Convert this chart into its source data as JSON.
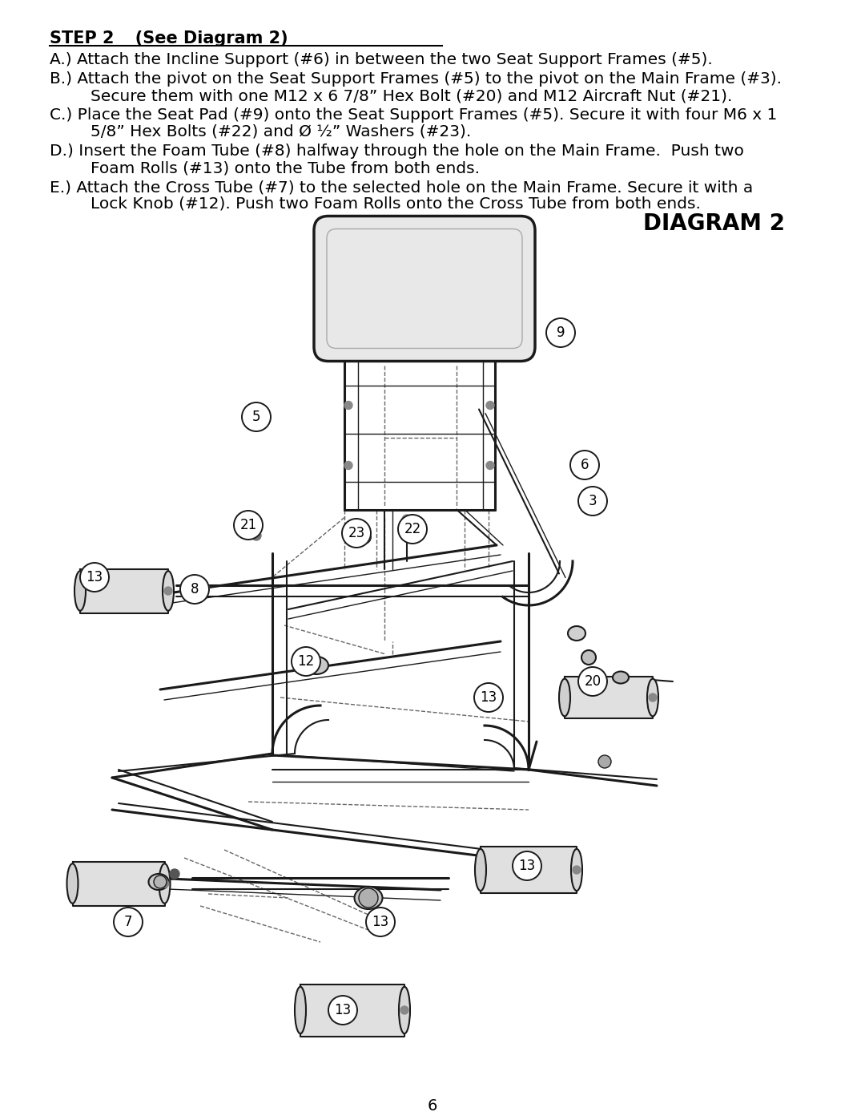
{
  "title_bold": "STEP 2",
  "title_rest": "   (See Diagram 2)",
  "diagram_title": "DIAGRAM 2",
  "page_number": "6",
  "background_color": "#ffffff",
  "text_color": "#000000",
  "line_A": "A.) Attach the Incline Support (#6) in between the two Seat Support Frames (#5).",
  "line_B1": "B.) Attach the pivot on the Seat Support Frames (#5) to the pivot on the Main Frame (#3).",
  "line_B2": "        Secure them with one M12 x 6 7/8” Hex Bolt (#20) and M12 Aircraft Nut (#21).",
  "line_C1": "C.) Place the Seat Pad (#9) onto the Seat Support Frames (#5). Secure it with four M6 x 1",
  "line_C2": "        5/8” Hex Bolts (#22) and Ø ½” Washers (#23).",
  "line_D1": "D.) Insert the Foam Tube (#8) halfway through the hole on the Main Frame.  Push two",
  "line_D2": "        Foam Rolls (#13) onto the Tube from both ends.",
  "line_E1": "E.) Attach the Cross Tube (#7) to the selected hole on the Main Frame. Secure it with a",
  "line_E2": "        Lock Knob (#12). Push two Foam Rolls onto the Cross Tube from both ends.",
  "figsize": [
    10.8,
    13.97
  ],
  "dpi": 100
}
